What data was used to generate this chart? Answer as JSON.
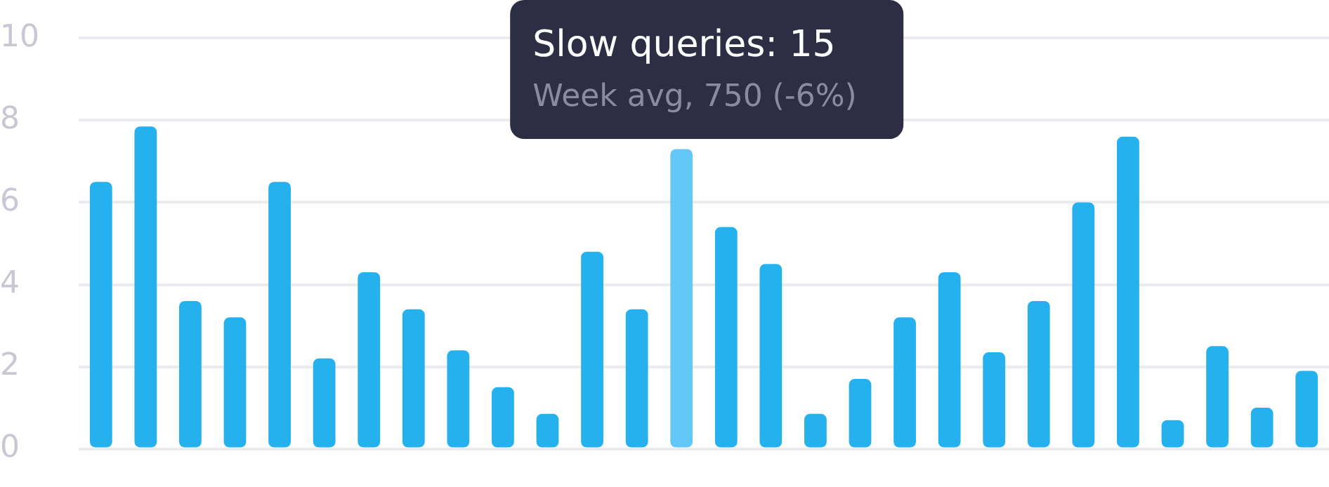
{
  "chart_data": {
    "type": "bar",
    "categories": [
      null,
      null,
      null,
      null,
      null,
      null,
      null,
      null,
      null,
      null,
      null,
      null,
      null,
      null,
      null,
      null,
      null,
      null,
      null,
      null,
      null,
      null,
      null,
      null,
      null,
      null,
      null,
      null
    ],
    "values": [
      6.5,
      7.85,
      3.6,
      3.2,
      6.5,
      2.2,
      4.3,
      3.4,
      2.4,
      1.5,
      0.85,
      4.8,
      3.4,
      7.3,
      5.4,
      4.5,
      0.85,
      1.7,
      3.2,
      4.3,
      2.35,
      3.6,
      6.0,
      7.6,
      0.7,
      2.5,
      1.0,
      1.9
    ],
    "colors": [
      "#25b0ee",
      "#25b0ee",
      "#25b0ee",
      "#25b0ee",
      "#25b0ee",
      "#25b0ee",
      "#25b0ee",
      "#25b0ee",
      "#25b0ee",
      "#25b0ee",
      "#25b0ee",
      "#25b0ee",
      "#25b0ee",
      "#63c8f8",
      "#25b0ee",
      "#25b0ee",
      "#25b0ee",
      "#25b0ee",
      "#25b0ee",
      "#25b0ee",
      "#25b0ee",
      "#25b0ee",
      "#25b0ee",
      "#25b0ee",
      "#25b0ee",
      "#25b0ee",
      "#25b0ee",
      "#25b0ee"
    ],
    "ylim": [
      0,
      10
    ],
    "yticks": [
      0,
      2,
      4,
      6,
      8,
      10
    ],
    "grid": "y",
    "legend": false,
    "annotations": [
      "Slow queries: 15",
      "Week avg, 750 (-6%)"
    ]
  }
}
